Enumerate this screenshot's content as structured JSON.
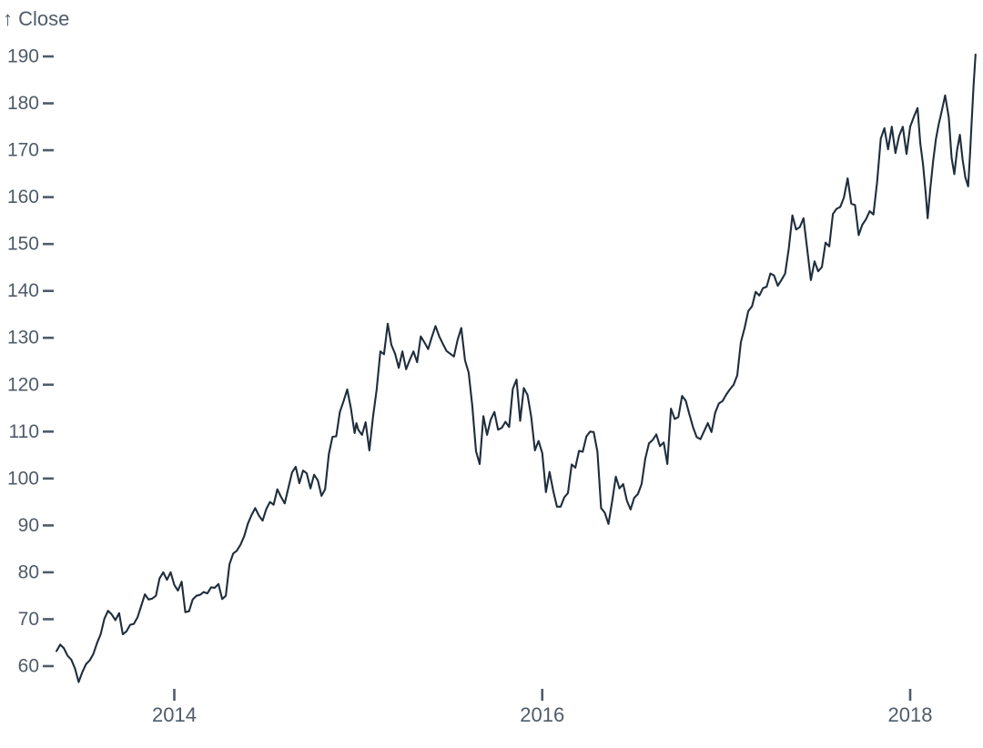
{
  "page": {
    "background": "#ffffff"
  },
  "chart": {
    "ylabel_display": "↑ Close",
    "line_color": "#1f2d3d",
    "axis_color": "#4f5b69"
  },
  "chart_data": {
    "type": "line",
    "title": "",
    "xlabel": "",
    "ylabel": "Close",
    "grid": false,
    "legend": "none",
    "x_unit": "year (decimal)",
    "x_ticks": [
      2014,
      2016,
      2018
    ],
    "y_ticks": [
      60,
      70,
      80,
      90,
      100,
      110,
      120,
      130,
      140,
      150,
      160,
      170,
      180,
      190
    ],
    "xlim": [
      2013.36,
      2018.36
    ],
    "ylim": [
      56,
      191
    ],
    "series": [
      {
        "name": "Close",
        "points": [
          [
            2013.36,
            63.2
          ],
          [
            2013.38,
            64.6
          ],
          [
            2013.4,
            63.8
          ],
          [
            2013.42,
            62.2
          ],
          [
            2013.44,
            61.4
          ],
          [
            2013.46,
            59.5
          ],
          [
            2013.48,
            56.6
          ],
          [
            2013.5,
            58.7
          ],
          [
            2013.52,
            60.4
          ],
          [
            2013.54,
            61.2
          ],
          [
            2013.56,
            62.6
          ],
          [
            2013.58,
            64.9
          ],
          [
            2013.6,
            66.8
          ],
          [
            2013.62,
            70.1
          ],
          [
            2013.64,
            71.8
          ],
          [
            2013.66,
            71.0
          ],
          [
            2013.68,
            69.8
          ],
          [
            2013.7,
            71.3
          ],
          [
            2013.72,
            66.8
          ],
          [
            2013.74,
            67.4
          ],
          [
            2013.76,
            68.8
          ],
          [
            2013.78,
            69.0
          ],
          [
            2013.8,
            70.4
          ],
          [
            2013.82,
            72.8
          ],
          [
            2013.84,
            75.3
          ],
          [
            2013.86,
            74.2
          ],
          [
            2013.88,
            74.4
          ],
          [
            2013.9,
            75.0
          ],
          [
            2013.92,
            78.7
          ],
          [
            2013.94,
            80.0
          ],
          [
            2013.96,
            78.4
          ],
          [
            2013.98,
            80.0
          ],
          [
            2014.0,
            77.3
          ],
          [
            2014.02,
            76.1
          ],
          [
            2014.04,
            78.0
          ],
          [
            2014.06,
            71.5
          ],
          [
            2014.08,
            71.7
          ],
          [
            2014.1,
            74.2
          ],
          [
            2014.12,
            75.0
          ],
          [
            2014.14,
            75.2
          ],
          [
            2014.16,
            75.8
          ],
          [
            2014.18,
            75.5
          ],
          [
            2014.2,
            76.8
          ],
          [
            2014.22,
            76.7
          ],
          [
            2014.24,
            77.5
          ],
          [
            2014.26,
            74.3
          ],
          [
            2014.28,
            75.0
          ],
          [
            2014.3,
            81.7
          ],
          [
            2014.32,
            84.0
          ],
          [
            2014.34,
            84.6
          ],
          [
            2014.36,
            85.9
          ],
          [
            2014.38,
            87.7
          ],
          [
            2014.4,
            90.4
          ],
          [
            2014.42,
            92.2
          ],
          [
            2014.44,
            93.7
          ],
          [
            2014.46,
            92.1
          ],
          [
            2014.48,
            91.0
          ],
          [
            2014.5,
            93.5
          ],
          [
            2014.52,
            95.0
          ],
          [
            2014.54,
            94.4
          ],
          [
            2014.56,
            97.7
          ],
          [
            2014.58,
            96.1
          ],
          [
            2014.6,
            94.7
          ],
          [
            2014.62,
            98.0
          ],
          [
            2014.64,
            101.3
          ],
          [
            2014.66,
            102.5
          ],
          [
            2014.68,
            99.0
          ],
          [
            2014.7,
            101.7
          ],
          [
            2014.72,
            101.1
          ],
          [
            2014.74,
            97.9
          ],
          [
            2014.76,
            100.8
          ],
          [
            2014.78,
            99.6
          ],
          [
            2014.8,
            96.3
          ],
          [
            2014.82,
            97.7
          ],
          [
            2014.84,
            105.2
          ],
          [
            2014.86,
            108.9
          ],
          [
            2014.88,
            109.0
          ],
          [
            2014.9,
            114.2
          ],
          [
            2014.92,
            116.5
          ],
          [
            2014.94,
            119.0
          ],
          [
            2014.96,
            115.0
          ],
          [
            2014.98,
            109.7
          ],
          [
            2014.99,
            111.8
          ],
          [
            2015.0,
            110.4
          ],
          [
            2015.02,
            109.3
          ],
          [
            2015.04,
            112.0
          ],
          [
            2015.06,
            106.0
          ],
          [
            2015.08,
            113.1
          ],
          [
            2015.1,
            118.9
          ],
          [
            2015.12,
            127.1
          ],
          [
            2015.14,
            126.5
          ],
          [
            2015.16,
            133.0
          ],
          [
            2015.18,
            128.5
          ],
          [
            2015.2,
            126.6
          ],
          [
            2015.22,
            123.6
          ],
          [
            2015.24,
            127.1
          ],
          [
            2015.26,
            123.3
          ],
          [
            2015.28,
            125.3
          ],
          [
            2015.3,
            127.1
          ],
          [
            2015.32,
            124.8
          ],
          [
            2015.34,
            130.3
          ],
          [
            2015.36,
            129.0
          ],
          [
            2015.38,
            127.6
          ],
          [
            2015.4,
            130.2
          ],
          [
            2015.42,
            132.5
          ],
          [
            2015.44,
            130.3
          ],
          [
            2015.46,
            128.7
          ],
          [
            2015.48,
            127.2
          ],
          [
            2015.5,
            126.6
          ],
          [
            2015.52,
            126.0
          ],
          [
            2015.54,
            129.6
          ],
          [
            2015.56,
            132.1
          ],
          [
            2015.58,
            125.2
          ],
          [
            2015.6,
            122.6
          ],
          [
            2015.62,
            115.5
          ],
          [
            2015.64,
            105.8
          ],
          [
            2015.66,
            103.1
          ],
          [
            2015.68,
            113.3
          ],
          [
            2015.7,
            109.3
          ],
          [
            2015.72,
            112.6
          ],
          [
            2015.74,
            114.2
          ],
          [
            2015.76,
            110.4
          ],
          [
            2015.78,
            110.8
          ],
          [
            2015.8,
            112.1
          ],
          [
            2015.82,
            111.0
          ],
          [
            2015.84,
            119.1
          ],
          [
            2015.86,
            121.1
          ],
          [
            2015.88,
            112.3
          ],
          [
            2015.9,
            119.3
          ],
          [
            2015.92,
            117.8
          ],
          [
            2015.94,
            113.2
          ],
          [
            2015.96,
            106.0
          ],
          [
            2015.98,
            108.0
          ],
          [
            2016.0,
            105.4
          ],
          [
            2016.02,
            97.1
          ],
          [
            2016.04,
            101.4
          ],
          [
            2016.06,
            97.3
          ],
          [
            2016.08,
            94.0
          ],
          [
            2016.1,
            94.0
          ],
          [
            2016.12,
            96.0
          ],
          [
            2016.14,
            96.9
          ],
          [
            2016.16,
            103.0
          ],
          [
            2016.18,
            102.3
          ],
          [
            2016.2,
            105.9
          ],
          [
            2016.22,
            105.7
          ],
          [
            2016.24,
            109.0
          ],
          [
            2016.26,
            110.0
          ],
          [
            2016.28,
            109.9
          ],
          [
            2016.3,
            105.7
          ],
          [
            2016.32,
            93.7
          ],
          [
            2016.34,
            92.7
          ],
          [
            2016.36,
            90.3
          ],
          [
            2016.38,
            95.2
          ],
          [
            2016.4,
            100.4
          ],
          [
            2016.42,
            97.9
          ],
          [
            2016.44,
            98.8
          ],
          [
            2016.46,
            95.3
          ],
          [
            2016.48,
            93.4
          ],
          [
            2016.5,
            95.9
          ],
          [
            2016.52,
            96.7
          ],
          [
            2016.54,
            98.8
          ],
          [
            2016.56,
            104.2
          ],
          [
            2016.58,
            107.5
          ],
          [
            2016.6,
            108.2
          ],
          [
            2016.62,
            109.4
          ],
          [
            2016.64,
            106.9
          ],
          [
            2016.66,
            107.7
          ],
          [
            2016.68,
            103.1
          ],
          [
            2016.7,
            114.9
          ],
          [
            2016.72,
            112.7
          ],
          [
            2016.74,
            113.1
          ],
          [
            2016.76,
            117.6
          ],
          [
            2016.78,
            116.6
          ],
          [
            2016.8,
            113.7
          ],
          [
            2016.82,
            110.9
          ],
          [
            2016.84,
            108.8
          ],
          [
            2016.86,
            108.4
          ],
          [
            2016.88,
            110.1
          ],
          [
            2016.9,
            111.8
          ],
          [
            2016.92,
            109.9
          ],
          [
            2016.94,
            114.0
          ],
          [
            2016.96,
            116.0
          ],
          [
            2016.98,
            116.5
          ],
          [
            2017.0,
            117.9
          ],
          [
            2017.02,
            119.0
          ],
          [
            2017.04,
            120.0
          ],
          [
            2017.06,
            122.0
          ],
          [
            2017.08,
            129.1
          ],
          [
            2017.1,
            132.1
          ],
          [
            2017.12,
            135.7
          ],
          [
            2017.14,
            136.7
          ],
          [
            2017.16,
            139.8
          ],
          [
            2017.18,
            139.0
          ],
          [
            2017.2,
            140.6
          ],
          [
            2017.22,
            140.9
          ],
          [
            2017.24,
            143.7
          ],
          [
            2017.26,
            143.3
          ],
          [
            2017.28,
            141.1
          ],
          [
            2017.3,
            142.3
          ],
          [
            2017.32,
            143.7
          ],
          [
            2017.34,
            149.0
          ],
          [
            2017.36,
            156.1
          ],
          [
            2017.38,
            153.1
          ],
          [
            2017.4,
            153.6
          ],
          [
            2017.42,
            155.5
          ],
          [
            2017.44,
            149.0
          ],
          [
            2017.46,
            142.3
          ],
          [
            2017.48,
            146.3
          ],
          [
            2017.5,
            144.2
          ],
          [
            2017.52,
            145.1
          ],
          [
            2017.54,
            150.3
          ],
          [
            2017.56,
            149.5
          ],
          [
            2017.58,
            156.4
          ],
          [
            2017.6,
            157.5
          ],
          [
            2017.62,
            157.9
          ],
          [
            2017.64,
            159.9
          ],
          [
            2017.66,
            164.0
          ],
          [
            2017.68,
            158.6
          ],
          [
            2017.7,
            158.3
          ],
          [
            2017.72,
            151.9
          ],
          [
            2017.74,
            154.1
          ],
          [
            2017.76,
            155.3
          ],
          [
            2017.78,
            157.0
          ],
          [
            2017.8,
            156.3
          ],
          [
            2017.82,
            163.1
          ],
          [
            2017.84,
            172.5
          ],
          [
            2017.86,
            174.7
          ],
          [
            2017.88,
            170.2
          ],
          [
            2017.9,
            175.0
          ],
          [
            2017.92,
            169.4
          ],
          [
            2017.94,
            173.1
          ],
          [
            2017.96,
            175.0
          ],
          [
            2017.98,
            169.2
          ],
          [
            2018.0,
            175.0
          ],
          [
            2018.02,
            177.1
          ],
          [
            2018.04,
            179.0
          ],
          [
            2018.055,
            171.5
          ],
          [
            2018.07,
            167.0
          ],
          [
            2018.085,
            160.5
          ],
          [
            2018.095,
            155.5
          ],
          [
            2018.11,
            162.0
          ],
          [
            2018.125,
            167.8
          ],
          [
            2018.14,
            172.4
          ],
          [
            2018.155,
            175.5
          ],
          [
            2018.17,
            178.1
          ],
          [
            2018.19,
            181.7
          ],
          [
            2018.21,
            177.0
          ],
          [
            2018.225,
            168.4
          ],
          [
            2018.24,
            164.9
          ],
          [
            2018.255,
            170.0
          ],
          [
            2018.27,
            173.3
          ],
          [
            2018.285,
            168.0
          ],
          [
            2018.3,
            164.2
          ],
          [
            2018.315,
            162.3
          ],
          [
            2018.325,
            169.0
          ],
          [
            2018.335,
            176.6
          ],
          [
            2018.345,
            184.0
          ],
          [
            2018.355,
            190.4
          ]
        ]
      }
    ]
  }
}
